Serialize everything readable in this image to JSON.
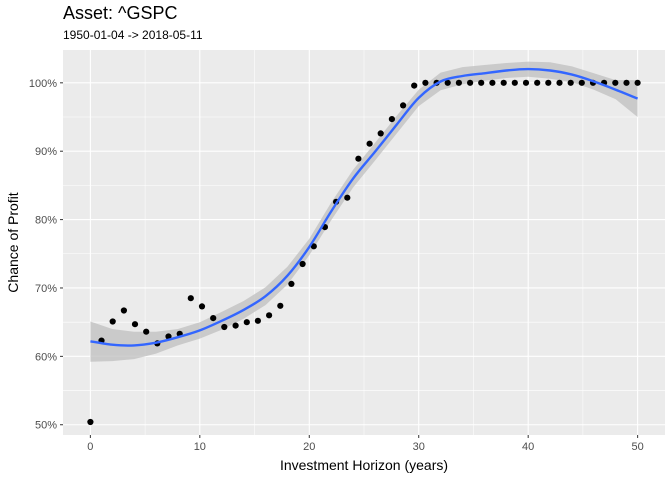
{
  "chart_data": {
    "type": "scatter",
    "title": "Asset: ^GSPC",
    "subtitle": "1950-01-04 -> 2018-05-11",
    "xlabel": "Investment Horizon (years)",
    "ylabel": "Chance of Profit",
    "xlim": [
      -2.5,
      52.5
    ],
    "ylim": [
      48.5,
      104.8
    ],
    "x_ticks": [
      0,
      10,
      20,
      30,
      40,
      50
    ],
    "x_tick_labels": [
      "0",
      "10",
      "20",
      "30",
      "40",
      "50"
    ],
    "y_ticks": [
      50,
      60,
      70,
      80,
      90,
      100
    ],
    "y_tick_labels": [
      "50%",
      "60%",
      "70%",
      "80%",
      "90%",
      "100%"
    ],
    "grid": true,
    "legend": "none",
    "colors": {
      "panel": "#ebebeb",
      "grid_major": "#ffffff",
      "points": "#000000",
      "smooth_line": "#3366ff",
      "ribbon": "#bfbfbf"
    },
    "series": [
      {
        "kind": "points",
        "x": [
          0,
          1.02,
          2.04,
          3.06,
          4.08,
          5.1,
          6.12,
          7.14,
          8.16,
          9.18,
          10.2,
          11.22,
          12.24,
          13.27,
          14.29,
          15.31,
          16.33,
          17.35,
          18.37,
          19.39,
          20.41,
          21.43,
          22.45,
          23.47,
          24.49,
          25.51,
          26.53,
          27.55,
          28.57,
          29.59,
          30.61,
          31.63,
          32.65,
          33.67,
          34.69,
          35.71,
          36.73,
          37.76,
          38.78,
          39.8,
          40.82,
          41.84,
          42.86,
          43.88,
          44.9,
          45.92,
          46.94,
          47.96,
          48.98,
          50
        ],
        "y": [
          50.4,
          62.3,
          65.1,
          66.7,
          64.7,
          63.6,
          61.9,
          62.9,
          63.3,
          68.5,
          67.3,
          65.6,
          64.3,
          64.5,
          65.0,
          65.2,
          66.0,
          67.4,
          70.6,
          73.5,
          76.1,
          78.9,
          82.6,
          83.2,
          88.9,
          91.1,
          92.6,
          94.7,
          96.7,
          99.6,
          100,
          100,
          100,
          100,
          100,
          100,
          100,
          100,
          100,
          100,
          100,
          100,
          100,
          100,
          100,
          100,
          100,
          100,
          100,
          100
        ]
      },
      {
        "kind": "smooth",
        "x": [
          0,
          2,
          4,
          6,
          8,
          10,
          12,
          14,
          16,
          18,
          20,
          22,
          24,
          26,
          28,
          30,
          32,
          34,
          36,
          38,
          40,
          42,
          44,
          46,
          48,
          50
        ],
        "y": [
          62.2,
          61.7,
          61.6,
          62.0,
          62.8,
          63.8,
          65.2,
          66.8,
          68.8,
          71.8,
          76.0,
          81.2,
          86.0,
          89.9,
          93.9,
          97.8,
          100.2,
          101.0,
          101.4,
          101.8,
          102.0,
          101.8,
          101.2,
          100.2,
          99.0,
          97.7
        ],
        "lower": [
          59.2,
          59.3,
          59.6,
          60.4,
          61.6,
          62.6,
          63.9,
          65.5,
          67.5,
          70.5,
          74.8,
          79.9,
          84.7,
          88.6,
          92.6,
          96.6,
          98.9,
          99.8,
          100.3,
          100.7,
          100.9,
          100.6,
          100.1,
          99.0,
          97.6,
          95.0
        ],
        "upper": [
          65.1,
          64.0,
          63.6,
          63.6,
          64.0,
          65.0,
          66.5,
          68.1,
          70.1,
          73.1,
          77.2,
          82.5,
          87.3,
          91.2,
          95.2,
          99.0,
          101.5,
          102.3,
          102.6,
          102.9,
          103.1,
          103.0,
          102.4,
          101.4,
          100.4,
          100.4
        ]
      }
    ]
  }
}
